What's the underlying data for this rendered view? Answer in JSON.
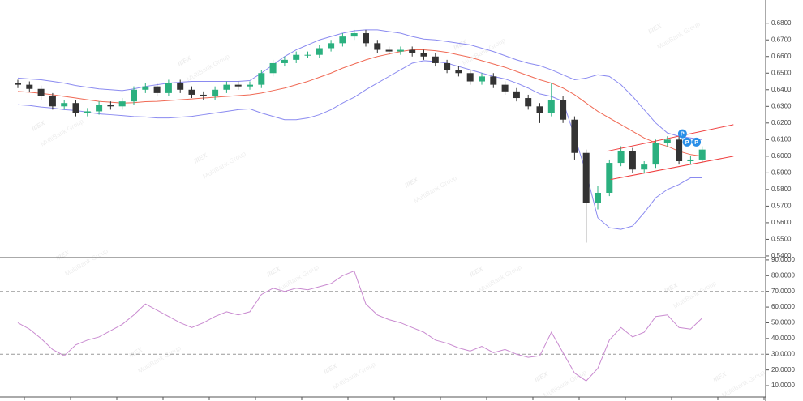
{
  "chart_data": [
    {
      "type": "candlestick",
      "open": [
        0.644,
        0.643,
        0.6405,
        0.636,
        0.63,
        0.632,
        0.626,
        0.627,
        0.631,
        0.63,
        0.633,
        0.64,
        0.642,
        0.638,
        0.644,
        0.64,
        0.637,
        0.636,
        0.64,
        0.643,
        0.642,
        0.643,
        0.65,
        0.656,
        0.658,
        0.661,
        0.661,
        0.665,
        0.668,
        0.672,
        0.674,
        0.668,
        0.664,
        0.663,
        0.664,
        0.662,
        0.66,
        0.656,
        0.652,
        0.65,
        0.645,
        0.648,
        0.643,
        0.639,
        0.635,
        0.63,
        0.626,
        0.634,
        0.622,
        0.602,
        0.572,
        0.578,
        0.596,
        0.603,
        0.592,
        0.595,
        0.608,
        0.61,
        0.597,
        0.598
      ],
      "high": [
        0.646,
        0.645,
        0.6425,
        0.638,
        0.634,
        0.634,
        0.629,
        0.633,
        0.633,
        0.635,
        0.642,
        0.644,
        0.644,
        0.646,
        0.646,
        0.642,
        0.639,
        0.642,
        0.645,
        0.645,
        0.645,
        0.652,
        0.658,
        0.66,
        0.663,
        0.663,
        0.667,
        0.67,
        0.674,
        0.676,
        0.676,
        0.67,
        0.666,
        0.666,
        0.666,
        0.664,
        0.662,
        0.658,
        0.654,
        0.652,
        0.65,
        0.65,
        0.645,
        0.641,
        0.637,
        0.632,
        0.644,
        0.636,
        0.624,
        0.604,
        0.582,
        0.598,
        0.606,
        0.605,
        0.597,
        0.61,
        0.612,
        0.612,
        0.6,
        0.606
      ],
      "low": [
        0.641,
        0.6385,
        0.634,
        0.628,
        0.628,
        0.624,
        0.624,
        0.625,
        0.628,
        0.628,
        0.631,
        0.638,
        0.636,
        0.636,
        0.638,
        0.635,
        0.634,
        0.634,
        0.638,
        0.64,
        0.64,
        0.641,
        0.648,
        0.654,
        0.656,
        0.659,
        0.659,
        0.663,
        0.666,
        0.67,
        0.666,
        0.662,
        0.661,
        0.661,
        0.66,
        0.658,
        0.654,
        0.65,
        0.648,
        0.643,
        0.643,
        0.641,
        0.637,
        0.633,
        0.628,
        0.62,
        0.624,
        0.62,
        0.598,
        0.548,
        0.568,
        0.576,
        0.594,
        0.59,
        0.59,
        0.593,
        0.606,
        0.595,
        0.595,
        0.596
      ],
      "close": [
        0.643,
        0.6405,
        0.636,
        0.63,
        0.632,
        0.626,
        0.627,
        0.631,
        0.63,
        0.633,
        0.64,
        0.642,
        0.638,
        0.644,
        0.64,
        0.637,
        0.636,
        0.64,
        0.643,
        0.642,
        0.643,
        0.65,
        0.656,
        0.658,
        0.661,
        0.661,
        0.665,
        0.668,
        0.672,
        0.674,
        0.668,
        0.664,
        0.663,
        0.664,
        0.662,
        0.66,
        0.656,
        0.652,
        0.65,
        0.645,
        0.648,
        0.643,
        0.639,
        0.635,
        0.63,
        0.626,
        0.634,
        0.622,
        0.602,
        0.572,
        0.578,
        0.596,
        0.603,
        0.592,
        0.595,
        0.608,
        0.61,
        0.597,
        0.598,
        0.604
      ],
      "up_color": "#2bb07f",
      "down_color": "#333333",
      "bands": [
        {
          "color": "#8a8af0",
          "values": [
            0.647,
            0.6465,
            0.646,
            0.645,
            0.644,
            0.6425,
            0.6415,
            0.6405,
            0.64,
            0.6395,
            0.6405,
            0.642,
            0.643,
            0.644,
            0.6445,
            0.645,
            0.645,
            0.645,
            0.645,
            0.645,
            0.6455,
            0.65,
            0.655,
            0.66,
            0.664,
            0.667,
            0.67,
            0.672,
            0.674,
            0.6755,
            0.676,
            0.676,
            0.675,
            0.674,
            0.672,
            0.6705,
            0.67,
            0.669,
            0.668,
            0.667,
            0.665,
            0.663,
            0.6605,
            0.658,
            0.656,
            0.6545,
            0.652,
            0.649,
            0.646,
            0.647,
            0.649,
            0.648,
            0.643,
            0.636,
            0.628,
            0.62,
            0.614,
            0.612,
            0.611,
            0.61
          ]
        },
        {
          "color": "#f06a55",
          "values": [
            0.639,
            0.6385,
            0.6378,
            0.637,
            0.636,
            0.635,
            0.634,
            0.633,
            0.6325,
            0.632,
            0.6322,
            0.6328,
            0.633,
            0.6335,
            0.634,
            0.6345,
            0.635,
            0.6355,
            0.636,
            0.6365,
            0.637,
            0.638,
            0.6395,
            0.641,
            0.643,
            0.645,
            0.6475,
            0.65,
            0.653,
            0.6555,
            0.658,
            0.66,
            0.6615,
            0.663,
            0.664,
            0.664,
            0.6635,
            0.6625,
            0.661,
            0.6595,
            0.6575,
            0.6555,
            0.6535,
            0.651,
            0.6485,
            0.646,
            0.644,
            0.641,
            0.637,
            0.632,
            0.627,
            0.623,
            0.619,
            0.615,
            0.611,
            0.608,
            0.606,
            0.603,
            0.601,
            0.6
          ]
        },
        {
          "color": "#8a8af0",
          "values": [
            0.631,
            0.6305,
            0.6296,
            0.629,
            0.628,
            0.6275,
            0.6265,
            0.6255,
            0.625,
            0.6245,
            0.6239,
            0.6236,
            0.623,
            0.623,
            0.6235,
            0.624,
            0.625,
            0.626,
            0.627,
            0.628,
            0.6285,
            0.626,
            0.624,
            0.622,
            0.622,
            0.623,
            0.625,
            0.628,
            0.632,
            0.6355,
            0.64,
            0.644,
            0.648,
            0.652,
            0.656,
            0.6575,
            0.657,
            0.656,
            0.654,
            0.652,
            0.65,
            0.648,
            0.6465,
            0.644,
            0.641,
            0.6375,
            0.636,
            0.633,
            0.612,
            0.59,
            0.563,
            0.557,
            0.556,
            0.558,
            0.566,
            0.575,
            0.58,
            0.583,
            0.587,
            0.587
          ]
        }
      ],
      "trendlines": [
        {
          "color": "#f04040",
          "x": [
            50.8,
            61.7
          ],
          "y": [
            0.603,
            0.619
          ]
        },
        {
          "color": "#f04040",
          "x": [
            51.1,
            61.7
          ],
          "y": [
            0.586,
            0.6
          ]
        }
      ],
      "markers": [
        {
          "label": "P",
          "x": 57.3,
          "y": 0.6135
        },
        {
          "label": "P",
          "x": 57.7,
          "y": 0.6085
        },
        {
          "label": "P",
          "x": 58.5,
          "y": 0.6085
        }
      ],
      "ylim": [
        0.539,
        0.694
      ],
      "yticks": [
        {
          "value": 0.54,
          "label": "0.5400"
        },
        {
          "value": 0.55,
          "label": "0.5500"
        },
        {
          "value": 0.56,
          "label": "0.5600"
        },
        {
          "value": 0.57,
          "label": "0.5700"
        },
        {
          "value": 0.58,
          "label": "0.5800"
        },
        {
          "value": 0.59,
          "label": "0.5900"
        },
        {
          "value": 0.6,
          "label": "0.6000"
        },
        {
          "value": 0.61,
          "label": "0.6100"
        },
        {
          "value": 0.62,
          "label": "0.6200"
        },
        {
          "value": 0.63,
          "label": "0.6300"
        },
        {
          "value": 0.64,
          "label": "0.6400"
        },
        {
          "value": 0.65,
          "label": "0.6500"
        },
        {
          "value": 0.66,
          "label": "0.6600"
        },
        {
          "value": 0.67,
          "label": "0.6700"
        },
        {
          "value": 0.68,
          "label": "0.6800"
        }
      ]
    },
    {
      "type": "line",
      "color": "#c98ad0",
      "values": [
        50,
        46,
        40,
        33,
        29,
        36,
        39,
        41,
        45,
        49,
        55,
        62,
        58,
        54,
        50,
        47,
        50,
        54,
        57,
        55,
        57,
        68,
        72,
        70,
        72,
        71,
        73,
        75,
        80,
        83,
        62,
        55,
        52,
        50,
        47,
        44,
        39,
        37,
        34,
        32,
        35,
        31,
        33,
        30,
        28,
        29,
        44,
        31,
        18,
        13,
        21,
        39,
        47,
        41,
        44,
        54,
        55,
        47,
        46,
        53
      ],
      "levels": [
        70,
        30
      ],
      "ylim": [
        2.8,
        91.5
      ],
      "yticks": [
        {
          "value": 10,
          "label": "10.0000"
        },
        {
          "value": 20,
          "label": "20.0000"
        },
        {
          "value": 30,
          "label": "30.0000"
        },
        {
          "value": 40,
          "label": "40.0000"
        },
        {
          "value": 50,
          "label": "50.0000"
        },
        {
          "value": 60,
          "label": "60.0000"
        },
        {
          "value": 70,
          "label": "70.0000"
        },
        {
          "value": 80,
          "label": "80.0000"
        },
        {
          "value": 90,
          "label": "90.0000"
        }
      ]
    }
  ],
  "watermark": {
    "logo": "IIIEX",
    "text": "MultiBank Group"
  }
}
